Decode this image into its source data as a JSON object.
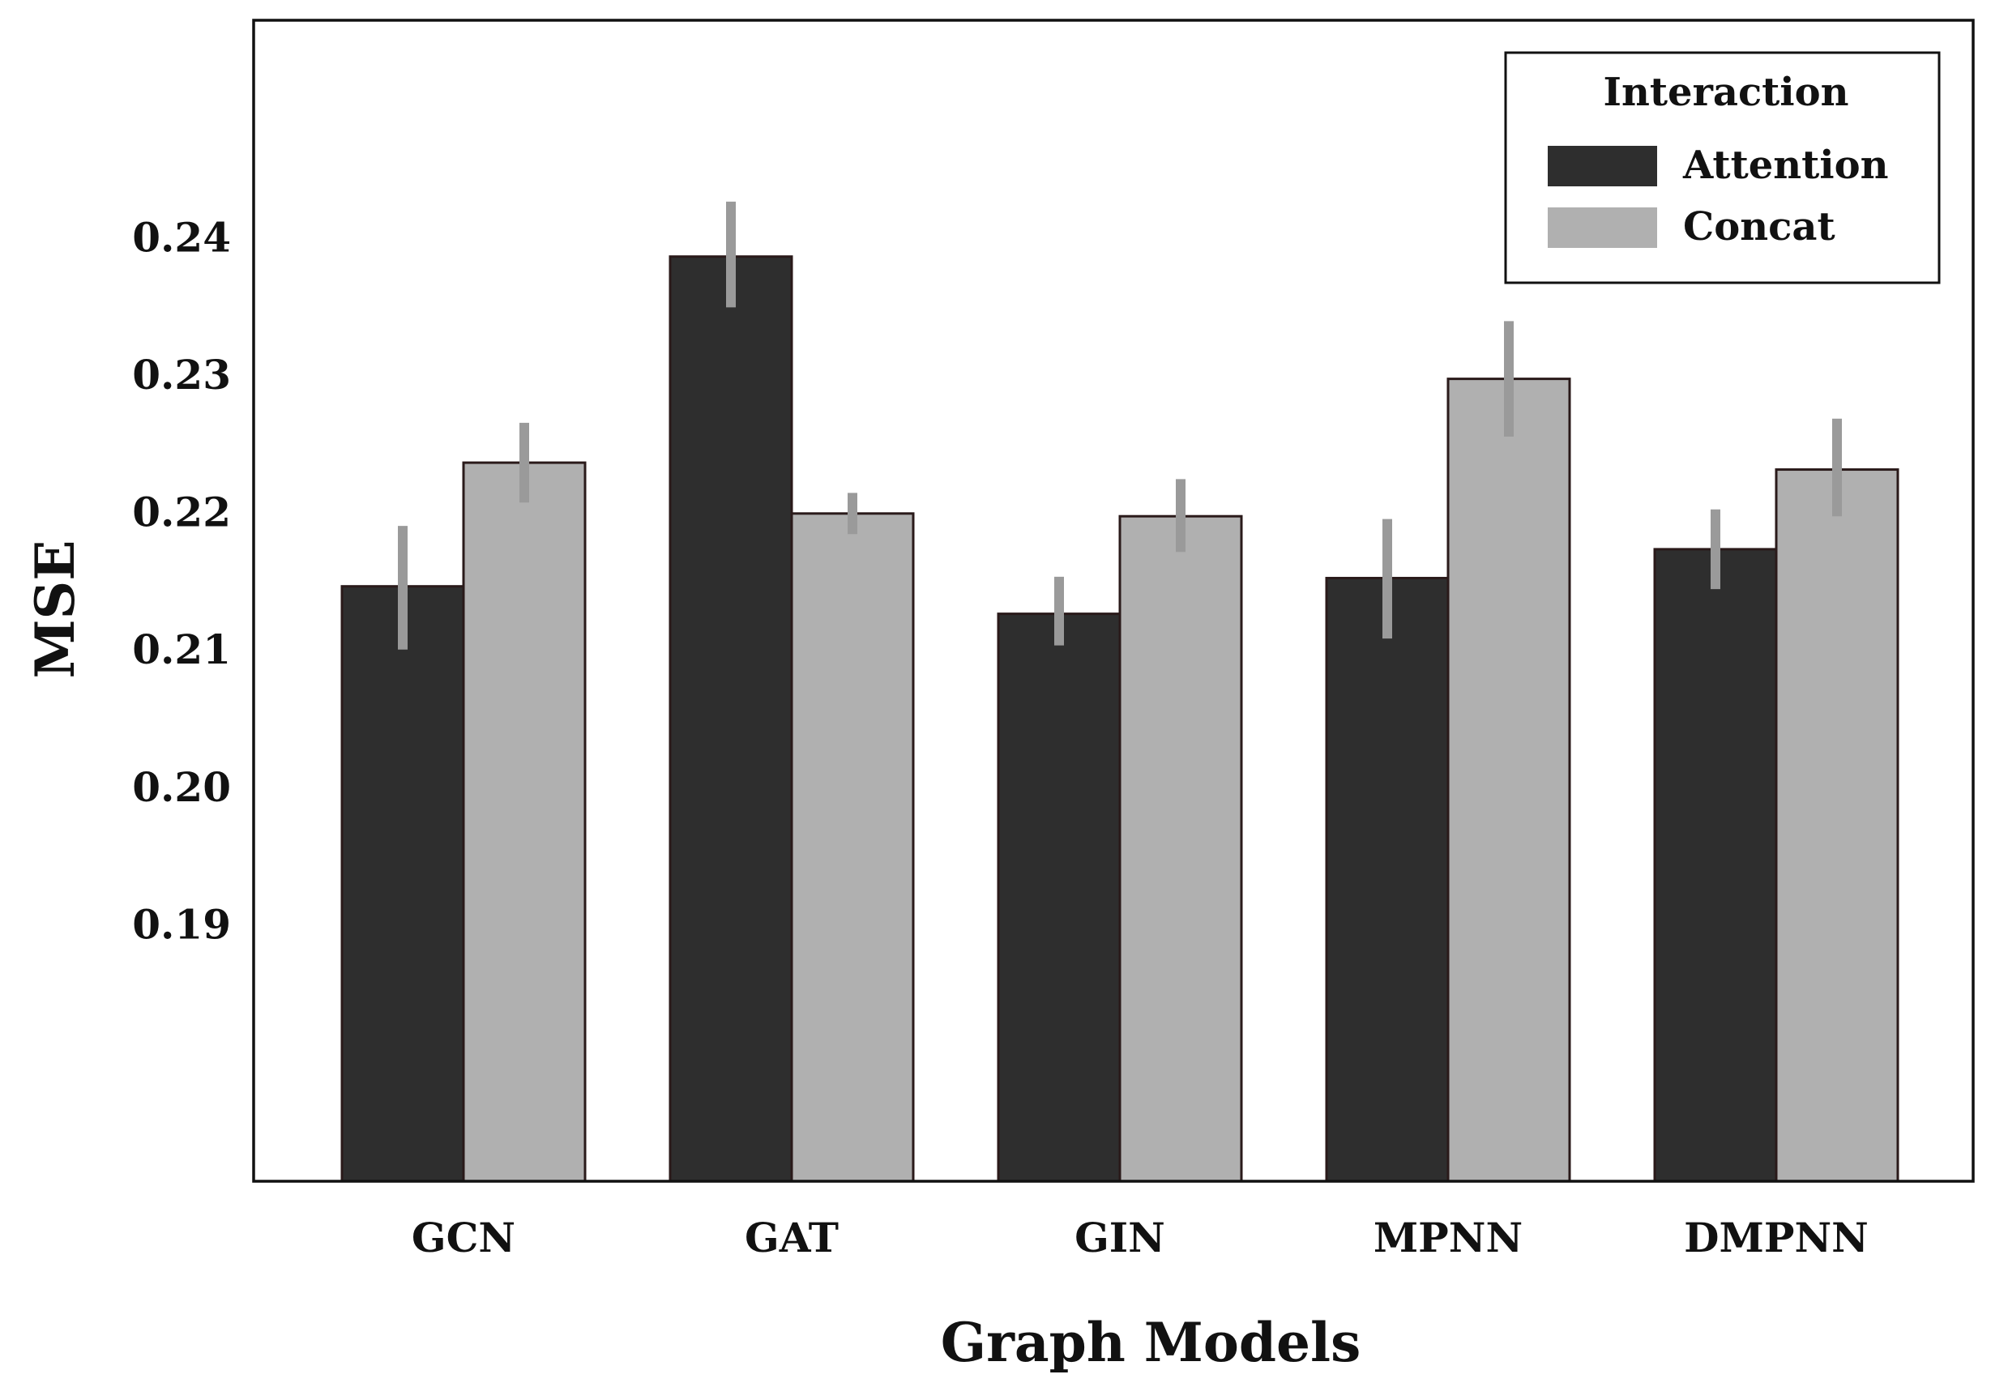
{
  "chart_data": {
    "type": "bar",
    "title": "",
    "xlabel": "Graph Models",
    "ylabel": "MSE",
    "categories": [
      "GCN",
      "GAT",
      "GIN",
      "MPNN",
      "DMPNN"
    ],
    "series": [
      {
        "name": "Attention",
        "color": "#2e2e2e",
        "values": [
          0.2146,
          0.2386,
          0.2126,
          0.2152,
          0.2173
        ],
        "error_low": [
          0.21,
          0.2349,
          0.2103,
          0.2108,
          0.2144
        ],
        "error_high": [
          0.219,
          0.2426,
          0.2153,
          0.2195,
          0.2202
        ]
      },
      {
        "name": "Concat",
        "color": "#b0b0b0",
        "values": [
          0.2236,
          0.2199,
          0.2197,
          0.2297,
          0.2231
        ],
        "error_low": [
          0.2207,
          0.2184,
          0.2171,
          0.2255,
          0.2197
        ],
        "error_high": [
          0.2265,
          0.2214,
          0.2224,
          0.2339,
          0.2268
        ]
      }
    ],
    "yticks": [
      "0.19",
      "0.20",
      "0.21",
      "0.22",
      "0.23",
      "0.24"
    ],
    "ylim": [
      0.1713,
      0.2558
    ],
    "grid": false,
    "legend": {
      "title": "Interaction",
      "placement": "top-right",
      "entries": [
        "Attention",
        "Concat"
      ]
    },
    "errorbar_color": "#9a9a9a"
  }
}
